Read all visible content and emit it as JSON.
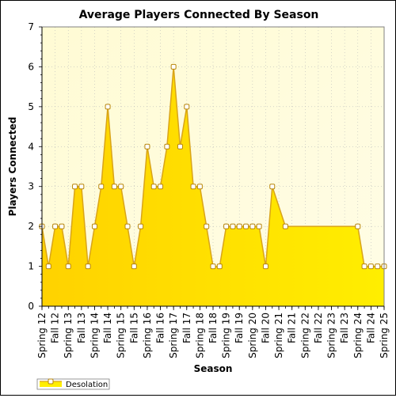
{
  "chart_data": {
    "type": "area",
    "title": "Average Players Connected By Season",
    "xlabel": "Season",
    "ylabel": "Players Connected",
    "ylim": [
      0,
      7
    ],
    "yticks": [
      0,
      1,
      2,
      3,
      4,
      5,
      6,
      7
    ],
    "grid": true,
    "legend_position": "bottom-left",
    "colors": {
      "fill": "#ffee00",
      "line": "#d9a418",
      "marker_fill": "#ffffff",
      "marker_stroke": "#b8860b",
      "plot_bg": "#fffde6",
      "grid": "#bbbbbb"
    },
    "x_tick_labels": [
      {
        "label": "Spring 12",
        "x": 0
      },
      {
        "label": "Fall 12",
        "x": 2
      },
      {
        "label": "Spring 13",
        "x": 4
      },
      {
        "label": "Fall 13",
        "x": 6
      },
      {
        "label": "Spring 14",
        "x": 8
      },
      {
        "label": "Fall 14",
        "x": 10
      },
      {
        "label": "Spring 15",
        "x": 12
      },
      {
        "label": "Fall 15",
        "x": 14
      },
      {
        "label": "Spring 16",
        "x": 16
      },
      {
        "label": "Fall 16",
        "x": 18
      },
      {
        "label": "Spring 17",
        "x": 20
      },
      {
        "label": "Fall 17",
        "x": 22
      },
      {
        "label": "Spring 18",
        "x": 24
      },
      {
        "label": "Fall 18",
        "x": 26
      },
      {
        "label": "Spring 19",
        "x": 28
      },
      {
        "label": "Fall 19",
        "x": 30
      },
      {
        "label": "Spring 20",
        "x": 32
      },
      {
        "label": "Fall 20",
        "x": 34
      },
      {
        "label": "Spring 21",
        "x": 36
      },
      {
        "label": "Fall 21",
        "x": 38
      },
      {
        "label": "Spring 22",
        "x": 40
      },
      {
        "label": "Fall 22",
        "x": 42
      },
      {
        "label": "Spring 23",
        "x": 44
      },
      {
        "label": "Fall 23",
        "x": 46
      },
      {
        "label": "Spring 24",
        "x": 48
      },
      {
        "label": "Fall 24",
        "x": 50
      },
      {
        "label": "Spring 25",
        "x": 52
      }
    ],
    "xlim": [
      0,
      52
    ],
    "series": [
      {
        "name": "Desolation",
        "points": [
          [
            0,
            2
          ],
          [
            1,
            1
          ],
          [
            2,
            2
          ],
          [
            3,
            2
          ],
          [
            4,
            1
          ],
          [
            5,
            3
          ],
          [
            6,
            3
          ],
          [
            7,
            1
          ],
          [
            8,
            2
          ],
          [
            9,
            3
          ],
          [
            10,
            5
          ],
          [
            11,
            3
          ],
          [
            12,
            3
          ],
          [
            13,
            2
          ],
          [
            14,
            1
          ],
          [
            15,
            2
          ],
          [
            16,
            4
          ],
          [
            17,
            3
          ],
          [
            18,
            3
          ],
          [
            19,
            4
          ],
          [
            20,
            6
          ],
          [
            21,
            4
          ],
          [
            22,
            5
          ],
          [
            23,
            3
          ],
          [
            24,
            3
          ],
          [
            25,
            2
          ],
          [
            26,
            1
          ],
          [
            27,
            1
          ],
          [
            28,
            2
          ],
          [
            29,
            2
          ],
          [
            30,
            2
          ],
          [
            31,
            2
          ],
          [
            32,
            2
          ],
          [
            33,
            2
          ],
          [
            34,
            1
          ],
          [
            35,
            3
          ],
          [
            37,
            2
          ],
          [
            48,
            2
          ],
          [
            49,
            1
          ],
          [
            50,
            1
          ],
          [
            51,
            1
          ],
          [
            52,
            1
          ]
        ]
      }
    ]
  }
}
